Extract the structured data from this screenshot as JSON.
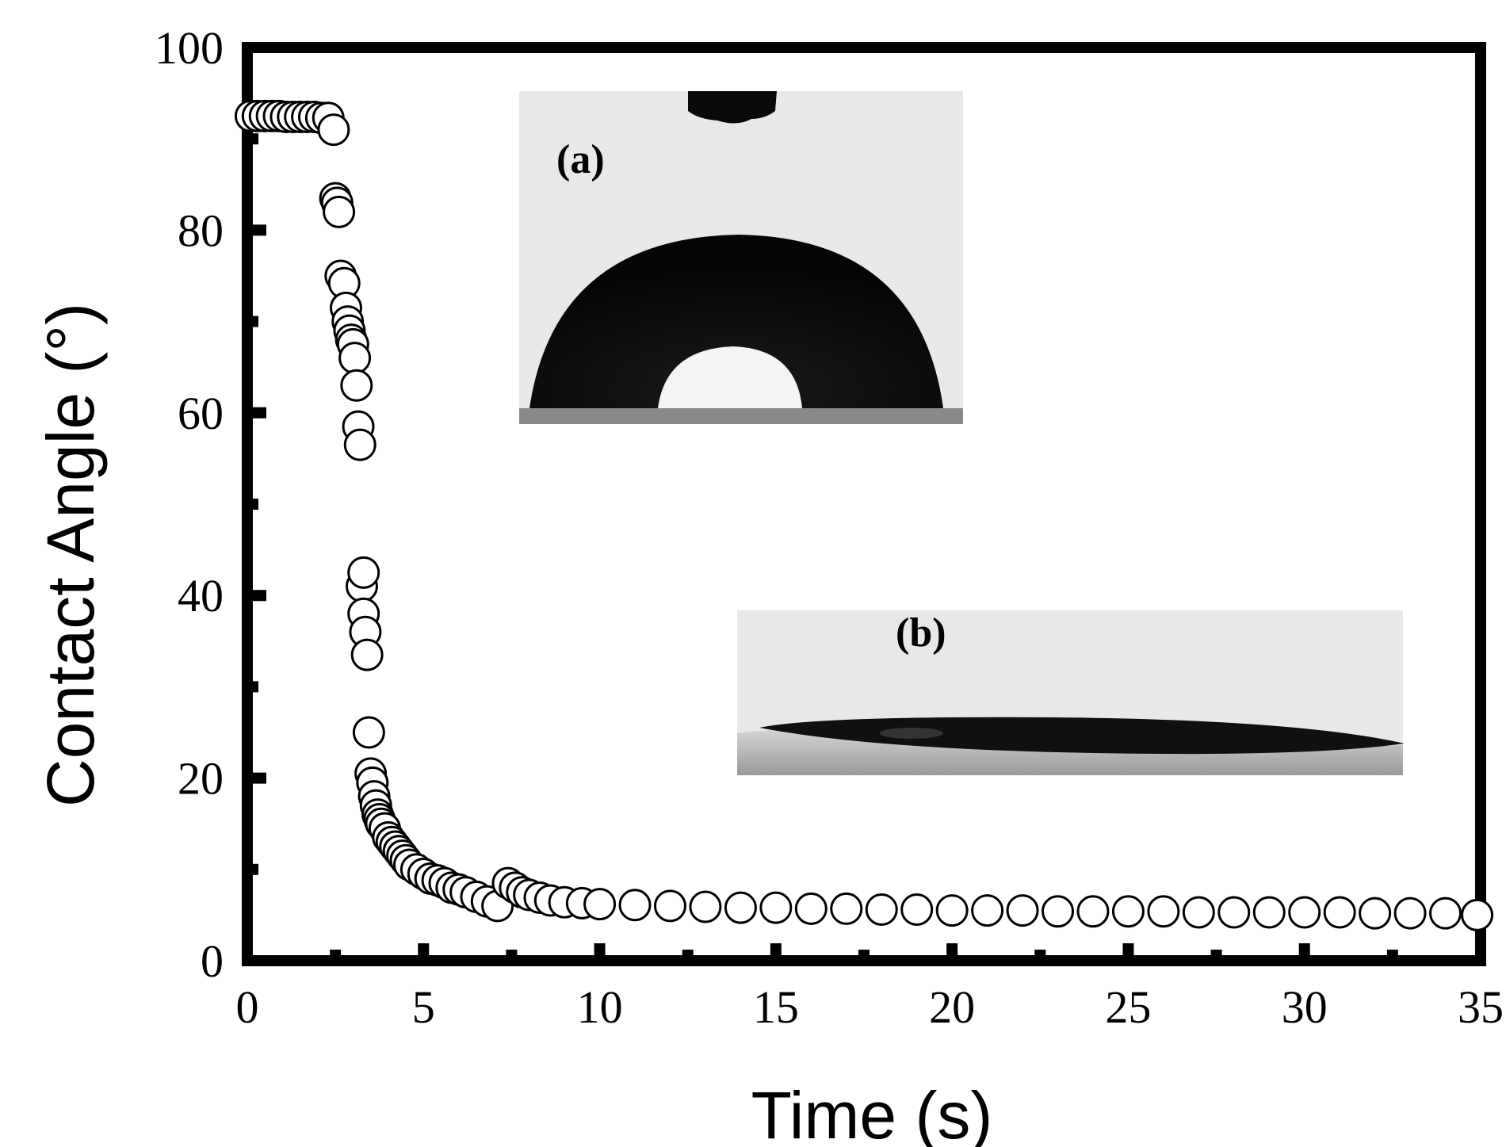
{
  "chart_data": {
    "type": "scatter",
    "xlabel": "Time (s)",
    "ylabel": "Contact Angle (°)",
    "xlim": [
      0,
      35
    ],
    "ylim": [
      0,
      100
    ],
    "xticks": [
      "0",
      "5",
      "10",
      "15",
      "20",
      "25",
      "30",
      "35"
    ],
    "yticks": [
      "0",
      "20",
      "40",
      "60",
      "80",
      "100"
    ],
    "grid": false,
    "marker": "open-circle",
    "x": [
      0.1,
      0.3,
      0.5,
      0.7,
      0.9,
      1.1,
      1.3,
      1.5,
      1.7,
      1.9,
      2.1,
      2.3,
      2.45,
      2.5,
      2.55,
      2.6,
      2.65,
      2.75,
      2.8,
      2.85,
      2.9,
      2.95,
      3.0,
      3.05,
      3.1,
      3.15,
      3.2,
      3.25,
      3.3,
      3.3,
      3.35,
      3.4,
      3.45,
      3.5,
      3.55,
      3.6,
      3.65,
      3.7,
      3.75,
      3.8,
      3.9,
      4.0,
      4.1,
      4.2,
      4.3,
      4.4,
      4.5,
      4.6,
      4.8,
      5.0,
      5.2,
      5.4,
      5.6,
      5.8,
      6.0,
      6.2,
      6.5,
      6.8,
      7.1,
      7.4,
      7.6,
      7.8,
      8.0,
      8.3,
      8.6,
      9.0,
      9.5,
      10.0,
      11.0,
      12.0,
      13.0,
      14.0,
      15.0,
      16.0,
      17.0,
      18.0,
      19.0,
      20.0,
      21.0,
      22.0,
      23.0,
      24.0,
      25.0,
      26.0,
      27.0,
      28.0,
      29.0,
      30.0,
      31.0,
      32.0,
      33.0,
      34.0,
      34.9
    ],
    "y": [
      92.5,
      92.5,
      92.5,
      92.5,
      92.5,
      92.4,
      92.4,
      92.4,
      92.4,
      92.4,
      92.3,
      92.3,
      91.0,
      83.5,
      83.0,
      82.0,
      75.0,
      74.2,
      71.5,
      70.0,
      69.0,
      68.0,
      67.5,
      66.0,
      63.0,
      58.5,
      56.5,
      41.0,
      42.5,
      38.0,
      36.0,
      33.5,
      25.0,
      20.5,
      19.5,
      18.0,
      17.0,
      16.0,
      15.5,
      15.0,
      14.5,
      13.5,
      13.0,
      12.5,
      12.0,
      11.5,
      11.0,
      10.5,
      10.0,
      9.5,
      9.0,
      8.8,
      8.5,
      8.0,
      7.8,
      7.5,
      7.0,
      6.5,
      6.0,
      8.5,
      8.0,
      7.5,
      7.2,
      6.9,
      6.6,
      6.4,
      6.3,
      6.2,
      6.1,
      6.0,
      5.9,
      5.8,
      5.8,
      5.7,
      5.7,
      5.6,
      5.6,
      5.5,
      5.5,
      5.5,
      5.4,
      5.4,
      5.4,
      5.4,
      5.3,
      5.3,
      5.3,
      5.3,
      5.3,
      5.2,
      5.2,
      5.2,
      5.0
    ]
  },
  "insets": {
    "a": {
      "label": "(a)"
    },
    "b": {
      "label": "(b)"
    }
  },
  "colors": {
    "axis": "#000000",
    "marker_fill": "#ffffff",
    "marker_stroke": "#000000",
    "inset_background": "#e8e8e8",
    "droplet": "#0c0c0c"
  }
}
